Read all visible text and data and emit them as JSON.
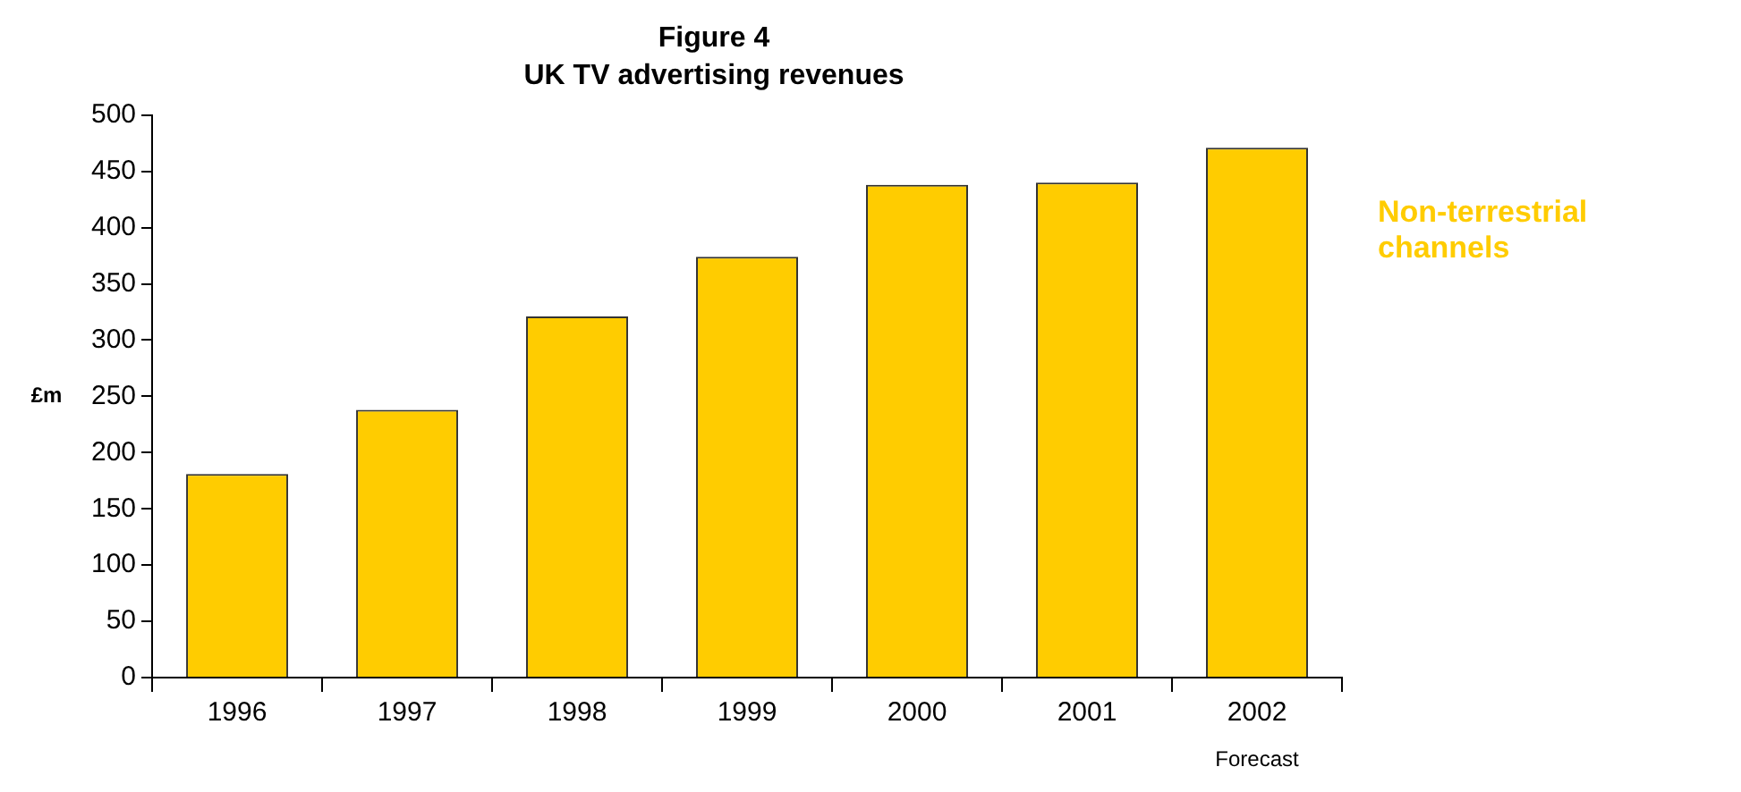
{
  "chart_data": {
    "type": "bar",
    "title": "Figure 4",
    "subtitle": "UK TV advertising revenues",
    "ylabel": "£m",
    "categories": [
      "1996",
      "1997",
      "1998",
      "1999",
      "2000",
      "2001",
      "2002"
    ],
    "series": [
      {
        "name": "Non-terrestrial channels",
        "color": "#ffcc00",
        "values": [
          181,
          238,
          321,
          374,
          438,
          440,
          471
        ]
      }
    ],
    "ylim": [
      0,
      500
    ],
    "yticks": [
      0,
      50,
      100,
      150,
      200,
      250,
      300,
      350,
      400,
      450,
      500
    ],
    "grid": false,
    "legend": false,
    "annotations": [
      "Forecast"
    ]
  }
}
